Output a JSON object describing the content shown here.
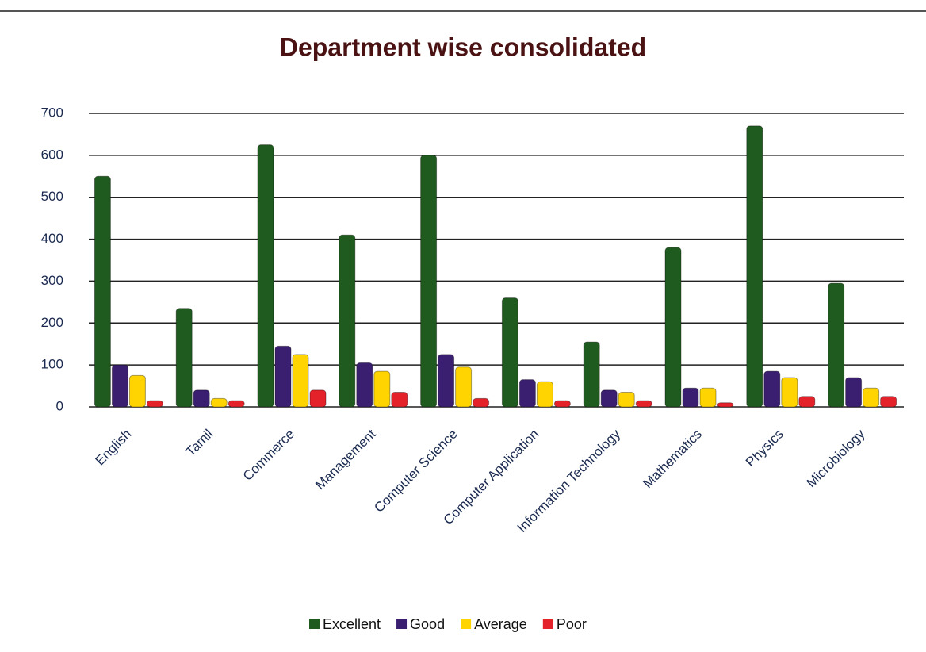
{
  "chart_data": {
    "type": "bar",
    "title": "Department wise consolidated",
    "categories": [
      "English",
      "Tamil",
      "Commerce",
      "Management",
      "Computer Science",
      "Computer Application",
      "Information Technology",
      "Mathematics",
      "Physics",
      "Microbiology"
    ],
    "series": [
      {
        "name": "Excellent",
        "color": "#1f5a1f",
        "values": [
          550,
          235,
          625,
          410,
          600,
          260,
          155,
          380,
          670,
          295
        ]
      },
      {
        "name": "Good",
        "color": "#3a1f70",
        "values": [
          100,
          40,
          145,
          105,
          125,
          65,
          40,
          45,
          85,
          70
        ]
      },
      {
        "name": "Average",
        "color": "#ffd400",
        "values": [
          75,
          20,
          125,
          85,
          95,
          60,
          35,
          45,
          70,
          45
        ]
      },
      {
        "name": "Poor",
        "color": "#e3222a",
        "values": [
          15,
          15,
          40,
          35,
          20,
          15,
          15,
          10,
          25,
          25
        ]
      }
    ],
    "ylim": [
      0,
      700
    ],
    "yticks": [
      0,
      100,
      200,
      300,
      400,
      500,
      600,
      700
    ],
    "grid": true,
    "legend": "bottom"
  }
}
